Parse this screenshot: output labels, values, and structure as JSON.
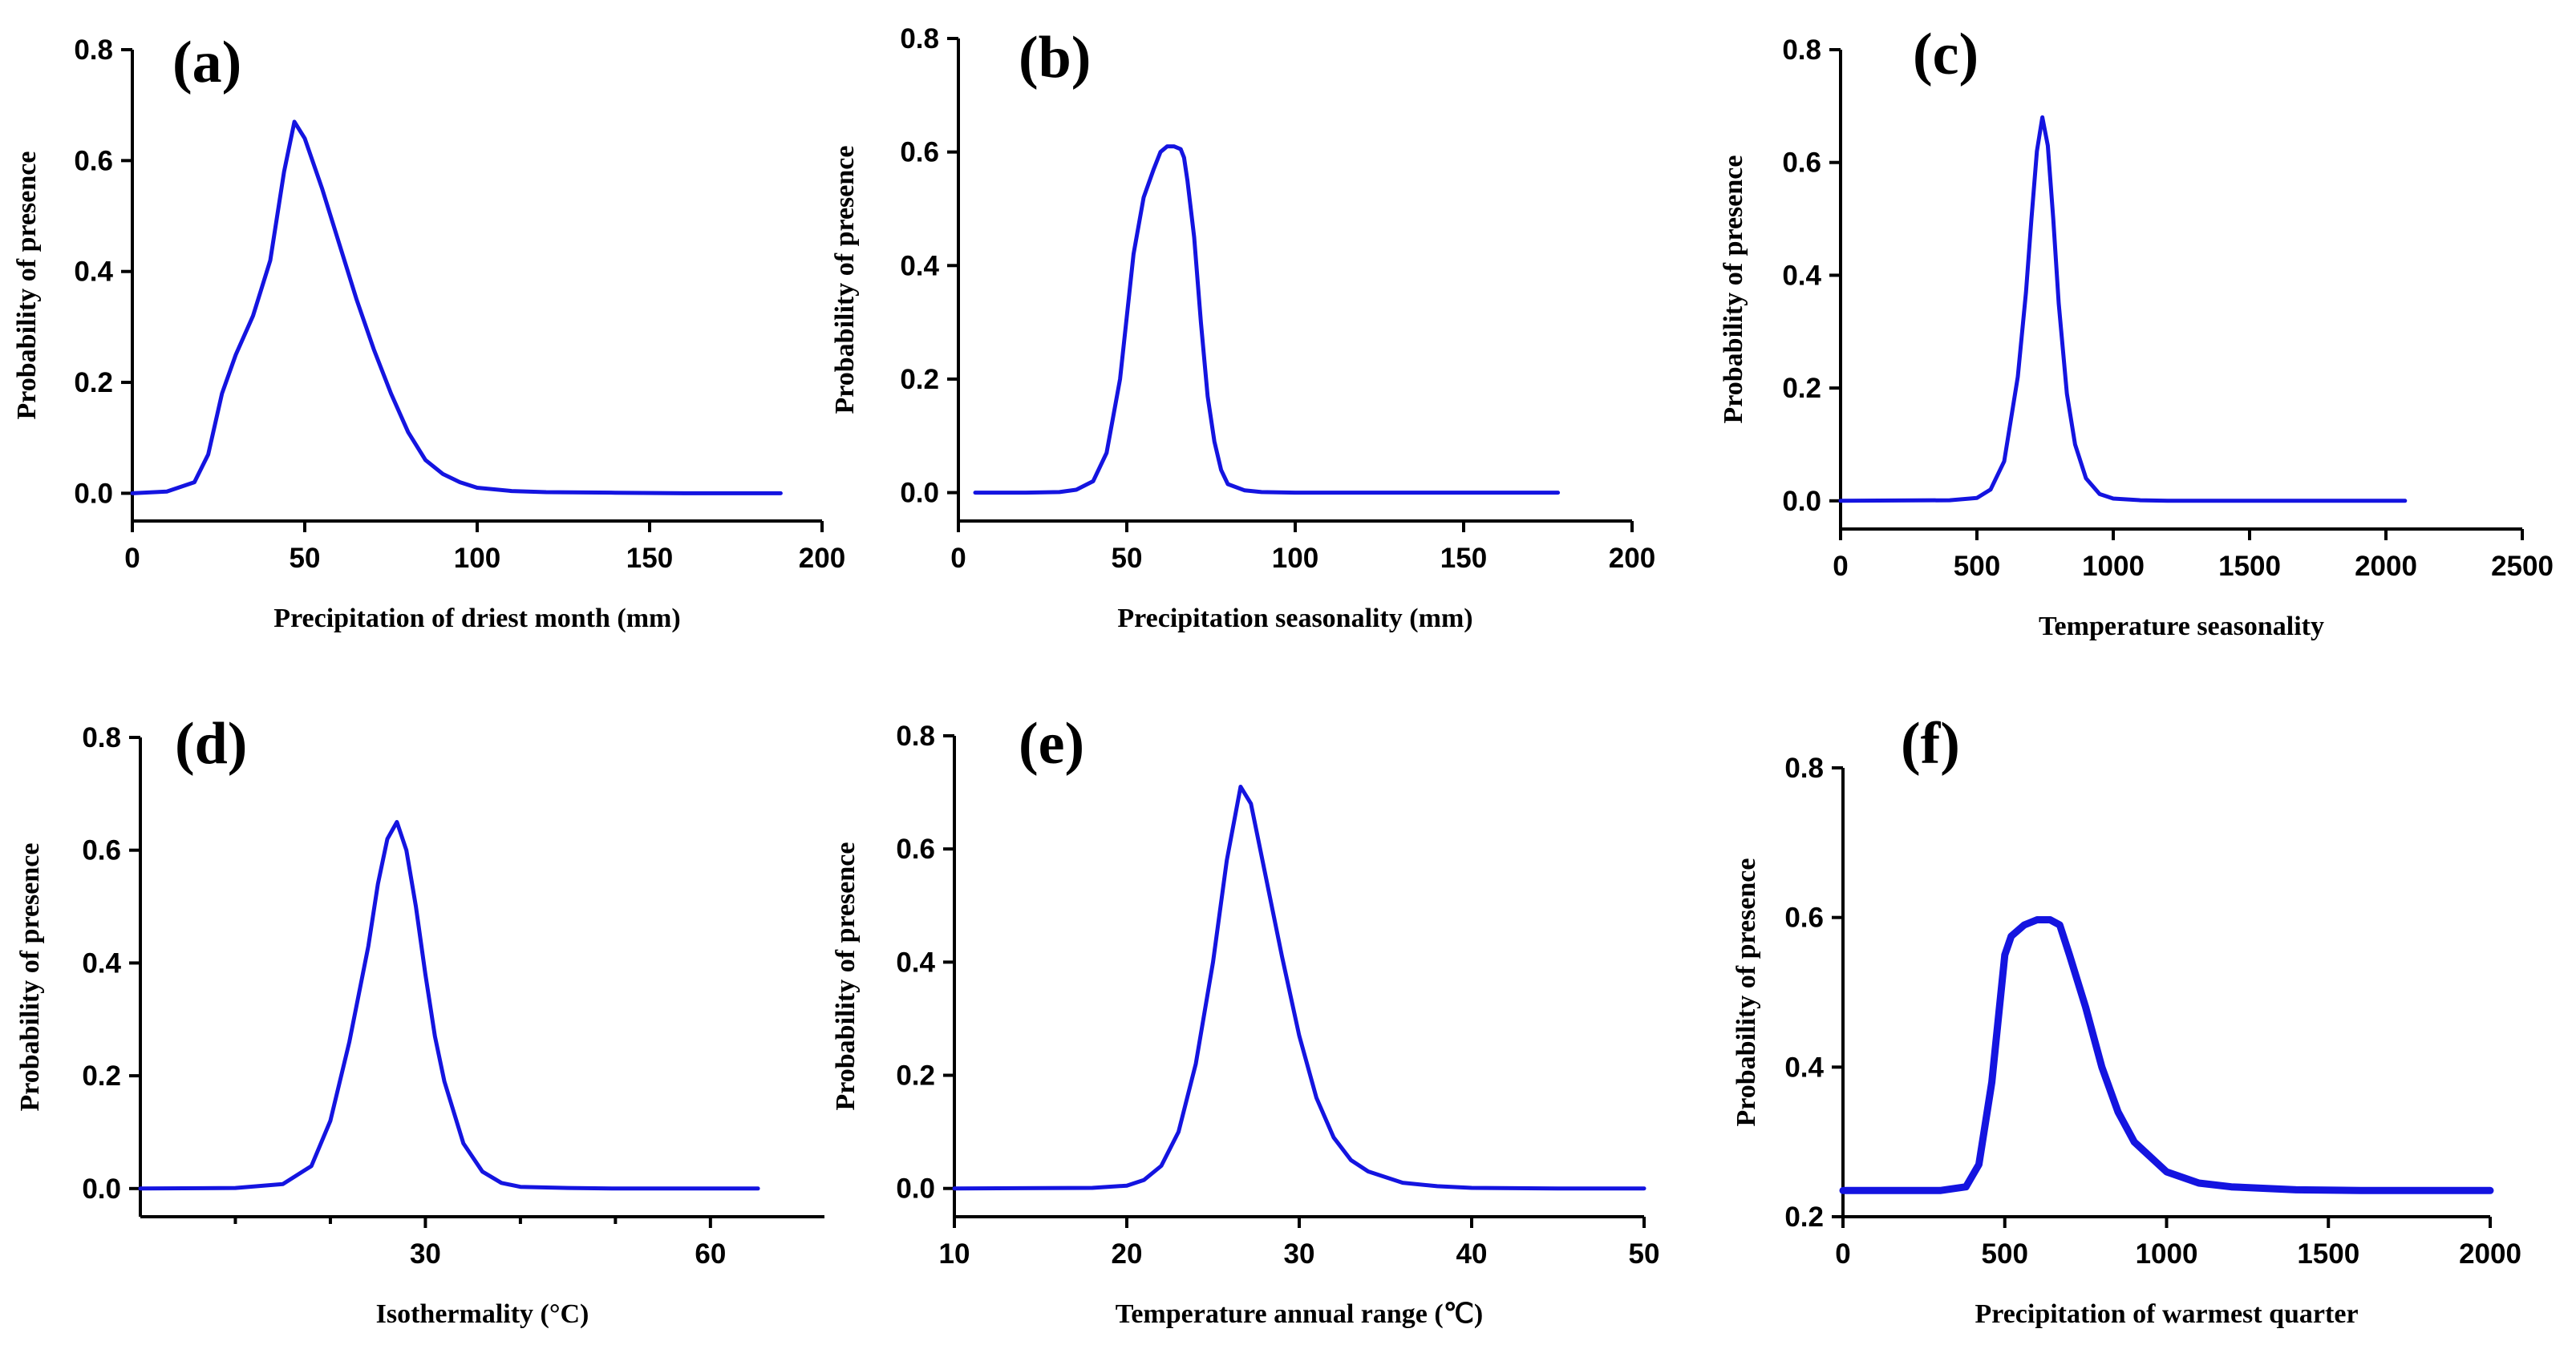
{
  "chart_data": [
    {
      "type": "line",
      "panel": "(a)",
      "xlabel": "Precipitation of driest month (mm)",
      "ylabel": "Probability of presence",
      "xlim": [
        0,
        200
      ],
      "ylim": [
        -0.05,
        0.8
      ],
      "xticks": [
        0,
        50,
        100,
        150,
        200
      ],
      "xtick_labels": [
        "0",
        "50",
        "100",
        "150",
        "200"
      ],
      "minor_xticks": [],
      "yticks": [
        0.0,
        0.2,
        0.4,
        0.6,
        0.8
      ],
      "ytick_labels": [
        "0.0",
        "0.2",
        "0.4",
        "0.6",
        "0.8"
      ],
      "x": [
        0,
        10,
        18,
        22,
        26,
        30,
        35,
        40,
        44,
        47,
        50,
        55,
        60,
        65,
        70,
        75,
        80,
        85,
        90,
        95,
        100,
        110,
        120,
        140,
        160,
        188
      ],
      "y": [
        0,
        0.003,
        0.02,
        0.07,
        0.18,
        0.25,
        0.32,
        0.42,
        0.58,
        0.67,
        0.64,
        0.55,
        0.45,
        0.35,
        0.26,
        0.18,
        0.11,
        0.06,
        0.035,
        0.02,
        0.01,
        0.004,
        0.002,
        0.001,
        0.0,
        0.0
      ]
    },
    {
      "type": "line",
      "panel": "(b)",
      "xlabel": "Precipitation seasonality (mm)",
      "ylabel": "Probability of presence",
      "xlim": [
        0,
        200
      ],
      "ylim": [
        -0.05,
        0.8
      ],
      "xticks": [
        0,
        50,
        100,
        150,
        200
      ],
      "xtick_labels": [
        "0",
        "50",
        "100",
        "150",
        "200"
      ],
      "minor_xticks": [],
      "yticks": [
        0.0,
        0.2,
        0.4,
        0.6,
        0.8
      ],
      "ytick_labels": [
        "0.0",
        "0.2",
        "0.4",
        "0.6",
        "0.8"
      ],
      "x": [
        5,
        20,
        30,
        35,
        40,
        44,
        48,
        52,
        55,
        58,
        60,
        62,
        64,
        66,
        67,
        68,
        70,
        72,
        74,
        76,
        78,
        80,
        85,
        90,
        100,
        120,
        150,
        178
      ],
      "y": [
        0,
        0,
        0.001,
        0.005,
        0.02,
        0.07,
        0.2,
        0.42,
        0.52,
        0.57,
        0.6,
        0.61,
        0.61,
        0.605,
        0.59,
        0.55,
        0.45,
        0.3,
        0.17,
        0.09,
        0.04,
        0.015,
        0.004,
        0.001,
        0,
        0,
        0,
        0
      ]
    },
    {
      "type": "line",
      "panel": "(c)",
      "xlabel": "Temperature seasonality",
      "ylabel": "Probability of presence",
      "xlim": [
        0,
        2500
      ],
      "ylim": [
        -0.05,
        0.8
      ],
      "xticks": [
        0,
        500,
        1000,
        1500,
        2000,
        2500
      ],
      "xtick_labels": [
        "0",
        "500",
        "1000",
        "1500",
        "2000",
        "2500"
      ],
      "minor_xticks": [],
      "yticks": [
        0.0,
        0.2,
        0.4,
        0.6,
        0.8
      ],
      "ytick_labels": [
        "0.0",
        "0.2",
        "0.4",
        "0.6",
        "0.8"
      ],
      "x": [
        0,
        400,
        500,
        550,
        600,
        650,
        680,
        700,
        720,
        740,
        760,
        780,
        800,
        830,
        860,
        900,
        950,
        1000,
        1100,
        1200,
        1500,
        2070
      ],
      "y": [
        0,
        0.001,
        0.005,
        0.02,
        0.07,
        0.22,
        0.37,
        0.5,
        0.62,
        0.68,
        0.63,
        0.5,
        0.35,
        0.19,
        0.1,
        0.04,
        0.012,
        0.004,
        0.001,
        0,
        0,
        0
      ]
    },
    {
      "type": "line",
      "panel": "(d)",
      "xlabel": "Isothermality (°C)",
      "ylabel": "Probability of presence",
      "xlim": [
        0,
        72
      ],
      "ylim": [
        -0.05,
        0.8
      ],
      "xticks": [
        30,
        60
      ],
      "xtick_labels": [
        "30",
        "60"
      ],
      "minor_xticks": [
        10,
        20,
        40,
        50
      ],
      "yticks": [
        0.0,
        0.2,
        0.4,
        0.6,
        0.8
      ],
      "ytick_labels": [
        "0.0",
        "0.2",
        "0.4",
        "0.6",
        "0.8"
      ],
      "x": [
        0,
        10,
        15,
        18,
        20,
        22,
        24,
        25,
        26,
        27,
        28,
        29,
        30,
        31,
        32,
        34,
        36,
        38,
        40,
        45,
        50,
        65
      ],
      "y": [
        0,
        0.001,
        0.008,
        0.04,
        0.12,
        0.26,
        0.43,
        0.54,
        0.62,
        0.65,
        0.6,
        0.5,
        0.38,
        0.27,
        0.19,
        0.08,
        0.03,
        0.01,
        0.003,
        0.001,
        0,
        0
      ]
    },
    {
      "type": "line",
      "panel": "(e)",
      "xlabel": "Temperature annual range (℃)",
      "ylabel": "Probability of presence",
      "xlim": [
        10,
        50
      ],
      "ylim": [
        -0.05,
        0.8
      ],
      "xticks": [
        10,
        20,
        30,
        40,
        50
      ],
      "xtick_labels": [
        "10",
        "20",
        "30",
        "40",
        "50"
      ],
      "minor_xticks": [],
      "yticks": [
        0.0,
        0.2,
        0.4,
        0.6,
        0.8
      ],
      "ytick_labels": [
        "0.0",
        "0.2",
        "0.4",
        "0.6",
        "0.8"
      ],
      "x": [
        10,
        18,
        20,
        21,
        22,
        23,
        24,
        25,
        25.8,
        26.6,
        27.2,
        28,
        29,
        30,
        31,
        32,
        33,
        34,
        36,
        38,
        40,
        45,
        50
      ],
      "y": [
        0,
        0.001,
        0.005,
        0.015,
        0.04,
        0.1,
        0.22,
        0.4,
        0.58,
        0.71,
        0.68,
        0.56,
        0.41,
        0.27,
        0.16,
        0.09,
        0.05,
        0.03,
        0.01,
        0.004,
        0.001,
        0,
        0
      ]
    },
    {
      "type": "line",
      "panel": "(f)",
      "xlabel": "Precipitation of warmest quarter",
      "ylabel": "Probability of presence",
      "xlim": [
        0,
        2000
      ],
      "ylim": [
        0.2,
        0.8
      ],
      "xticks": [
        0,
        500,
        1000,
        1500,
        2000
      ],
      "xtick_labels": [
        "0",
        "500",
        "1000",
        "1500",
        "2000"
      ],
      "minor_xticks": [],
      "yticks": [
        0.2,
        0.4,
        0.6,
        0.8
      ],
      "ytick_labels": [
        "0.2",
        "0.4",
        "0.6",
        "0.8"
      ],
      "x": [
        0,
        300,
        380,
        420,
        460,
        500,
        520,
        560,
        600,
        640,
        670,
        700,
        750,
        800,
        850,
        900,
        1000,
        1100,
        1200,
        1400,
        1600,
        2000
      ],
      "y": [
        0.235,
        0.235,
        0.24,
        0.27,
        0.38,
        0.55,
        0.575,
        0.59,
        0.597,
        0.597,
        0.59,
        0.55,
        0.48,
        0.4,
        0.34,
        0.3,
        0.26,
        0.245,
        0.24,
        0.236,
        0.235,
        0.235
      ]
    }
  ]
}
